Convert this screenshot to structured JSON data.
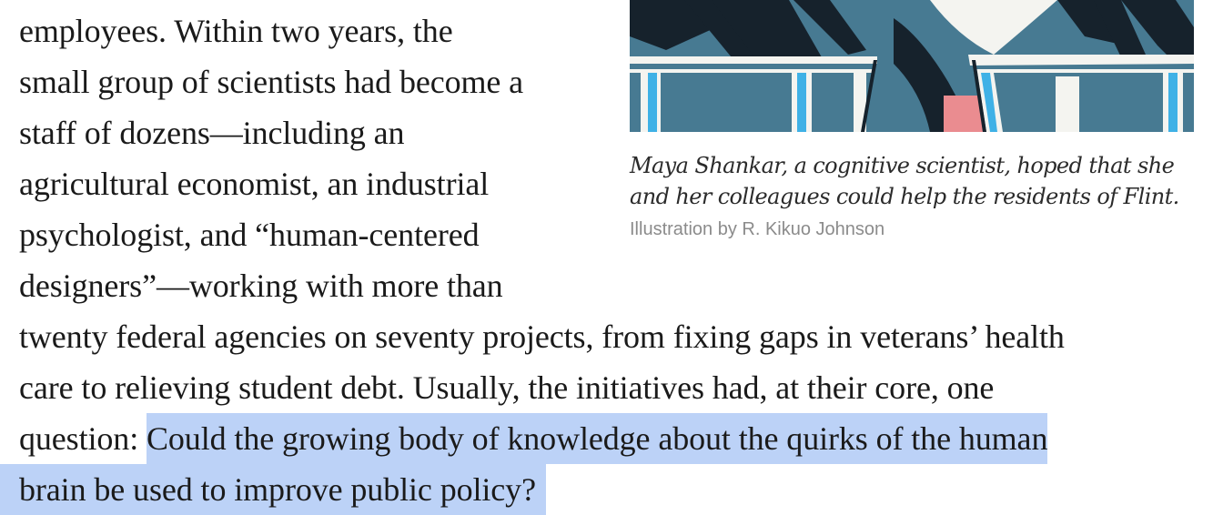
{
  "article": {
    "narrow_lines": [
      "employees. Within two years, the",
      "small group of scientists had become a",
      "staff of dozens—including an",
      "agricultural economist, an industrial",
      "psychologist, and “human-centered",
      "designers”—working with more than"
    ],
    "full_lines": [
      "twenty federal agencies on seventy projects, from fixing gaps in veterans’ health",
      "care to relieving student debt. Usually, the initiatives had, at their core, one"
    ],
    "question_lead": "question: ",
    "highlight_part1": "Could the growing body of knowledge about the quirks of the human",
    "highlight_part2": "brain be used to improve public policy?"
  },
  "figure": {
    "caption_line1": "Maya Shankar, a cognitive scientist, hoped that she",
    "caption_line2": "and her colleagues could help the residents of Flint.",
    "credit": "Illustration by R. Kikuo Johnson",
    "colors": {
      "background_blue": "#477a92",
      "dark_shape": "#16222c",
      "pink": "#ea8c90",
      "white": "#f4f4f0",
      "cyan": "#3fb1e6"
    }
  },
  "highlight_color": "#bcd2f7"
}
